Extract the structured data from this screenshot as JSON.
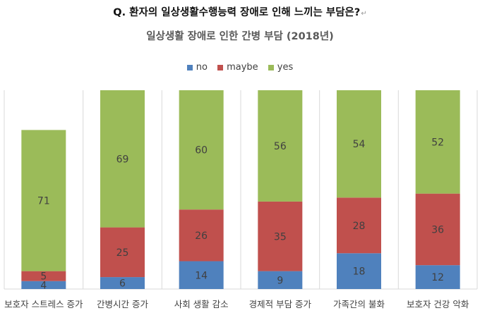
{
  "question": "Q. 환자의 일상생활수행능력 장애로 인해 느끼는 부담은?",
  "return_mark": "↵",
  "colors": {
    "no": "#4f81bd",
    "maybe": "#c0504d",
    "yes": "#9bbb59",
    "grid": "#d9d9d9",
    "label": "#404040"
  },
  "chart_data": {
    "type": "bar",
    "stacked": true,
    "title": "일상생활 장애로 인한 간병 부담 (2018년)",
    "categories": [
      "보호자 스트레스 증가",
      "간병시간 증가",
      "사회 생활 감소",
      "경제적 부담 증가",
      "가족간의 불화",
      "보호자 건강 악화"
    ],
    "series": [
      {
        "name": "no",
        "values": [
          4,
          6,
          14,
          9,
          18,
          12
        ]
      },
      {
        "name": "maybe",
        "values": [
          5,
          25,
          26,
          35,
          28,
          36
        ]
      },
      {
        "name": "yes",
        "values": [
          71,
          69,
          60,
          56,
          54,
          52
        ]
      }
    ],
    "ylim": [
      0,
      100
    ],
    "legend_position": "top",
    "grid": "vertical separators"
  }
}
